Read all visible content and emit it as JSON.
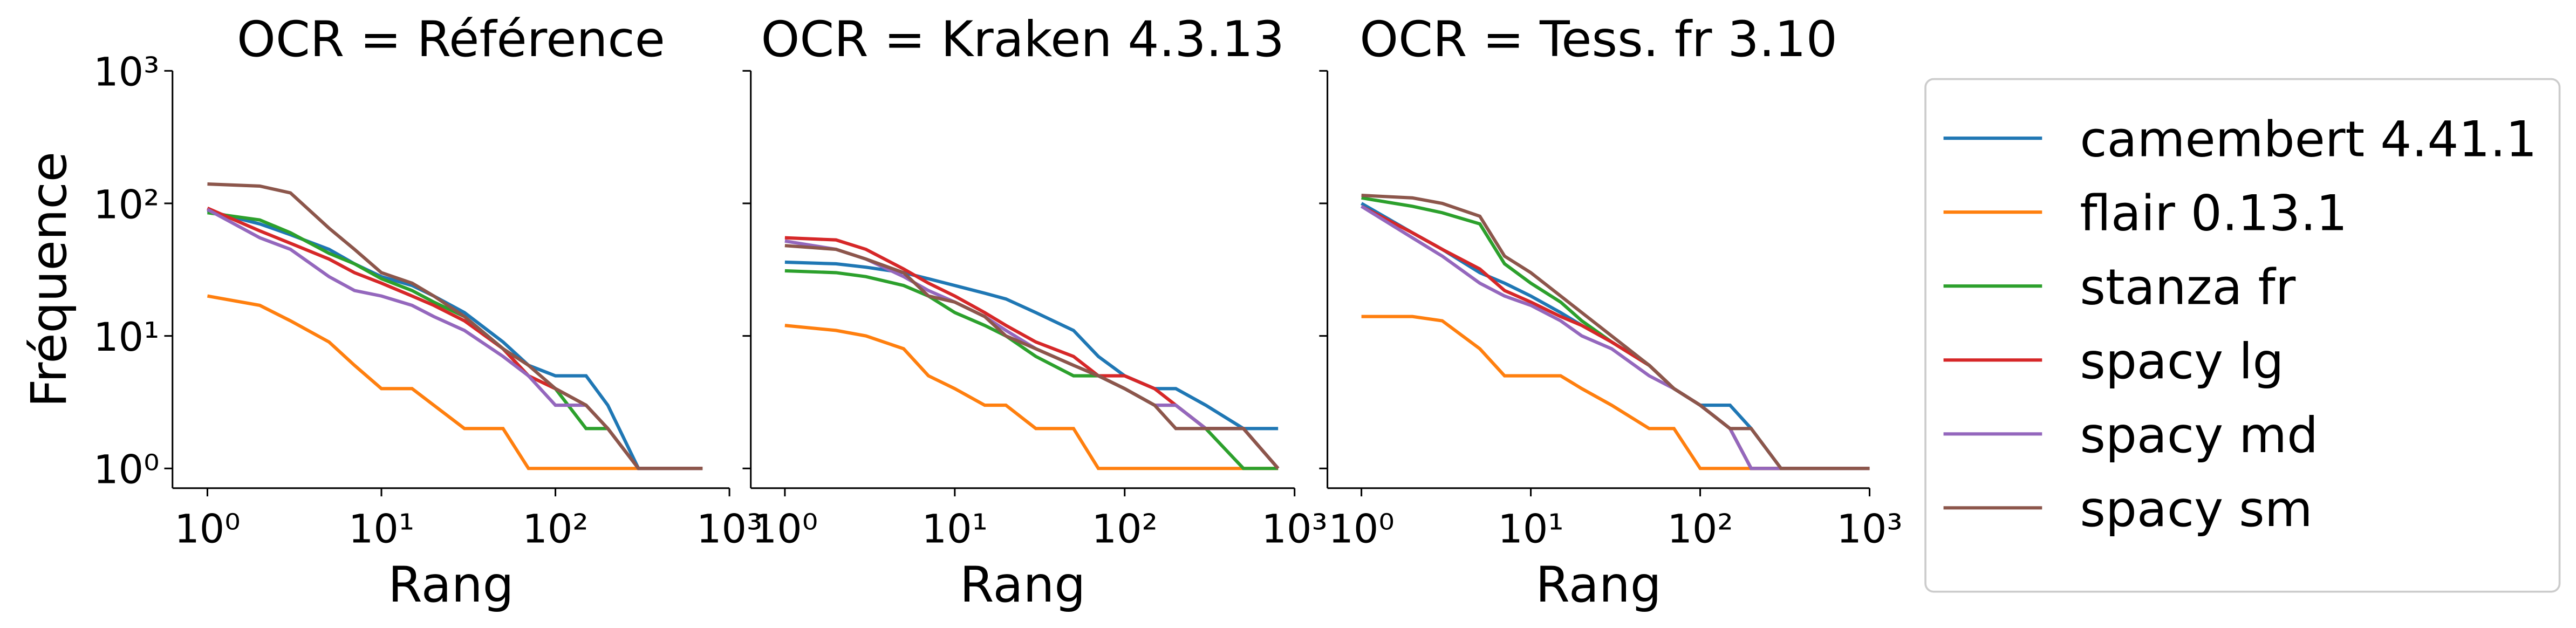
{
  "chart_data": [
    {
      "type": "line",
      "title": "OCR = Référence",
      "x_label": "Rang",
      "y_label": "Fréquence",
      "log_x": true,
      "log_y": true,
      "xlim": [
        0.63,
        1000
      ],
      "ylim": [
        0.71,
        1000
      ],
      "xticks": [
        {
          "value": 1,
          "label": "10⁰"
        },
        {
          "value": 10,
          "label": "10¹"
        },
        {
          "value": 100,
          "label": "10²"
        },
        {
          "value": 1000,
          "label": "10³"
        }
      ],
      "yticks": [
        {
          "value": 1,
          "label": "10⁰"
        },
        {
          "value": 10,
          "label": "10¹"
        },
        {
          "value": 100,
          "label": "10²"
        },
        {
          "value": 1000,
          "label": "10³"
        }
      ],
      "x": [
        1,
        2,
        3,
        5,
        7,
        10,
        15,
        20,
        30,
        50,
        70,
        100,
        150,
        200,
        300,
        500,
        700
      ],
      "series": [
        {
          "name": "camembert 4.41.1",
          "color": "#1f77b4",
          "values": [
            88,
            70,
            58,
            45,
            35,
            28,
            24,
            20,
            15,
            9,
            6,
            5,
            5,
            3,
            1,
            1,
            1
          ]
        },
        {
          "name": "flair 0.13.1",
          "color": "#ff7f0e",
          "values": [
            20,
            17,
            13,
            9,
            6,
            4,
            4,
            3,
            2,
            2,
            1,
            1,
            1,
            1,
            1,
            1,
            1
          ]
        },
        {
          "name": "stanza fr",
          "color": "#2ca02c",
          "values": [
            85,
            75,
            60,
            42,
            35,
            27,
            22,
            18,
            14,
            8,
            5,
            4,
            2,
            2,
            1,
            1,
            1
          ]
        },
        {
          "name": "spacy lg",
          "color": "#d62728",
          "values": [
            92,
            62,
            50,
            38,
            30,
            25,
            20,
            17,
            13,
            8,
            5,
            4,
            3,
            2,
            1,
            1,
            1
          ]
        },
        {
          "name": "spacy md",
          "color": "#9467bd",
          "values": [
            90,
            55,
            45,
            28,
            22,
            20,
            17,
            14,
            11,
            7,
            5,
            3,
            3,
            2,
            1,
            1,
            1
          ]
        },
        {
          "name": "spacy sm",
          "color": "#8c564b",
          "values": [
            140,
            135,
            120,
            65,
            45,
            30,
            25,
            20,
            14,
            8,
            6,
            4,
            3,
            2,
            1,
            1,
            1
          ]
        }
      ]
    },
    {
      "type": "line",
      "title": "OCR = Kraken 4.3.13",
      "x_label": "Rang",
      "log_x": true,
      "log_y": true,
      "xlim": [
        0.63,
        1000
      ],
      "ylim": [
        0.71,
        1000
      ],
      "xticks": [
        {
          "value": 1,
          "label": "10⁰"
        },
        {
          "value": 10,
          "label": "10¹"
        },
        {
          "value": 100,
          "label": "10²"
        },
        {
          "value": 1000,
          "label": "10³"
        }
      ],
      "yticks": [
        1,
        10,
        100,
        1000
      ],
      "x": [
        1,
        2,
        3,
        5,
        7,
        10,
        15,
        20,
        30,
        50,
        70,
        100,
        150,
        200,
        300,
        500,
        800
      ],
      "series": [
        {
          "color": "#1f77b4",
          "values": [
            36,
            35,
            33,
            30,
            27,
            24,
            21,
            19,
            15,
            11,
            7,
            5,
            4,
            4,
            3,
            2,
            2
          ]
        },
        {
          "color": "#ff7f0e",
          "values": [
            12,
            11,
            10,
            8,
            5,
            4,
            3,
            3,
            2,
            2,
            1,
            1,
            1,
            1,
            1,
            1,
            1
          ]
        },
        {
          "color": "#2ca02c",
          "values": [
            31,
            30,
            28,
            24,
            20,
            15,
            12,
            10,
            7,
            5,
            5,
            4,
            3,
            3,
            2,
            1,
            1
          ]
        },
        {
          "color": "#d62728",
          "values": [
            55,
            53,
            45,
            32,
            25,
            20,
            15,
            12,
            9,
            7,
            5,
            5,
            4,
            3,
            2,
            2,
            1
          ]
        },
        {
          "color": "#9467bd",
          "values": [
            52,
            45,
            38,
            28,
            22,
            18,
            14,
            11,
            8,
            6,
            5,
            4,
            3,
            3,
            2,
            2,
            1
          ]
        },
        {
          "color": "#8c564b",
          "values": [
            48,
            45,
            38,
            30,
            20,
            18,
            14,
            10,
            8,
            6,
            5,
            4,
            3,
            2,
            2,
            2,
            1
          ]
        }
      ]
    },
    {
      "type": "line",
      "title": "OCR = Tess. fr 3.10",
      "x_label": "Rang",
      "log_x": true,
      "log_y": true,
      "xlim": [
        0.63,
        1000
      ],
      "ylim": [
        0.71,
        1000
      ],
      "xticks": [
        {
          "value": 1,
          "label": "10⁰"
        },
        {
          "value": 10,
          "label": "10¹"
        },
        {
          "value": 100,
          "label": "10²"
        },
        {
          "value": 1000,
          "label": "10³"
        }
      ],
      "yticks": [
        1,
        10,
        100,
        1000
      ],
      "x": [
        1,
        2,
        3,
        5,
        7,
        10,
        15,
        20,
        30,
        50,
        70,
        100,
        150,
        200,
        300,
        500,
        1000
      ],
      "series": [
        {
          "color": "#1f77b4",
          "values": [
            100,
            60,
            45,
            30,
            25,
            20,
            15,
            12,
            9,
            6,
            4,
            3,
            3,
            2,
            1,
            1,
            1
          ]
        },
        {
          "color": "#ff7f0e",
          "values": [
            14,
            14,
            13,
            8,
            5,
            5,
            5,
            4,
            3,
            2,
            2,
            1,
            1,
            1,
            1,
            1,
            1
          ]
        },
        {
          "color": "#2ca02c",
          "values": [
            110,
            95,
            85,
            70,
            35,
            25,
            18,
            13,
            9,
            6,
            4,
            3,
            2,
            1,
            1,
            1,
            1
          ]
        },
        {
          "color": "#d62728",
          "values": [
            95,
            60,
            45,
            32,
            22,
            18,
            14,
            12,
            9,
            6,
            4,
            3,
            2,
            1,
            1,
            1,
            1
          ]
        },
        {
          "color": "#9467bd",
          "values": [
            95,
            55,
            40,
            25,
            20,
            17,
            13,
            10,
            8,
            5,
            4,
            3,
            2,
            1,
            1,
            1,
            1
          ]
        },
        {
          "color": "#8c564b",
          "values": [
            115,
            110,
            100,
            80,
            40,
            30,
            20,
            15,
            10,
            6,
            4,
            3,
            2,
            2,
            1,
            1,
            1
          ]
        }
      ]
    }
  ]
}
